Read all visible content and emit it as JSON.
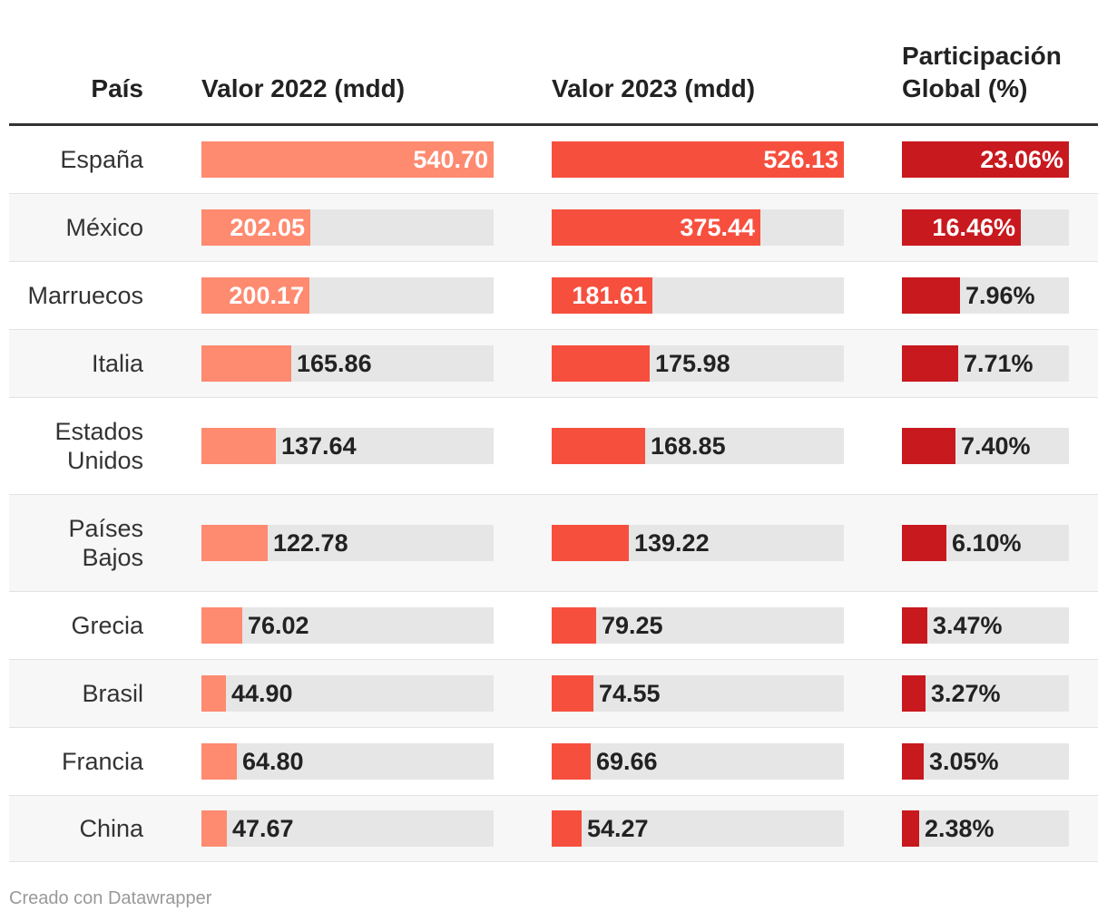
{
  "headers": {
    "pais": "País",
    "valor_2022": "Valor 2022 (mdd)",
    "valor_2023": "Valor 2023 (mdd)",
    "participacion_line1": "Participación",
    "participacion_line2": "Global (%)"
  },
  "colors": {
    "bar_2022": "#fe8a70",
    "bar_2023": "#f74f3e",
    "bar_share": "#c8191f",
    "track": "#e6e6e6"
  },
  "chart_data": {
    "type": "table",
    "title": "",
    "columns": [
      "País",
      "Valor 2022 (mdd)",
      "Valor 2023 (mdd)",
      "Participación Global (%)"
    ],
    "scale_max": {
      "valor_2022": 540.7,
      "valor_2023": 526.13,
      "participacion": 23.06
    },
    "rows": [
      {
        "pais": [
          "España"
        ],
        "v2022": 540.7,
        "v2022_label": "540.70",
        "v2023": 526.13,
        "v2023_label": "526.13",
        "share": 23.06,
        "share_label": "23.06%"
      },
      {
        "pais": [
          "México"
        ],
        "v2022": 202.05,
        "v2022_label": "202.05",
        "v2023": 375.44,
        "v2023_label": "375.44",
        "share": 16.46,
        "share_label": "16.46%"
      },
      {
        "pais": [
          "Marruecos"
        ],
        "v2022": 200.17,
        "v2022_label": "200.17",
        "v2023": 181.61,
        "v2023_label": "181.61",
        "share": 7.96,
        "share_label": "7.96%"
      },
      {
        "pais": [
          "Italia"
        ],
        "v2022": 165.86,
        "v2022_label": "165.86",
        "v2023": 175.98,
        "v2023_label": "175.98",
        "share": 7.71,
        "share_label": "7.71%"
      },
      {
        "pais": [
          "Estados",
          "Unidos"
        ],
        "v2022": 137.64,
        "v2022_label": "137.64",
        "v2023": 168.85,
        "v2023_label": "168.85",
        "share": 7.4,
        "share_label": "7.40%"
      },
      {
        "pais": [
          "Países",
          "Bajos"
        ],
        "v2022": 122.78,
        "v2022_label": "122.78",
        "v2023": 139.22,
        "v2023_label": "139.22",
        "share": 6.1,
        "share_label": "6.10%"
      },
      {
        "pais": [
          "Grecia"
        ],
        "v2022": 76.02,
        "v2022_label": "76.02",
        "v2023": 79.25,
        "v2023_label": "79.25",
        "share": 3.47,
        "share_label": "3.47%"
      },
      {
        "pais": [
          "Brasil"
        ],
        "v2022": 44.9,
        "v2022_label": "44.90",
        "v2023": 74.55,
        "v2023_label": "74.55",
        "share": 3.27,
        "share_label": "3.27%"
      },
      {
        "pais": [
          "Francia"
        ],
        "v2022": 64.8,
        "v2022_label": "64.80",
        "v2023": 69.66,
        "v2023_label": "69.66",
        "share": 3.05,
        "share_label": "3.05%"
      },
      {
        "pais": [
          "China"
        ],
        "v2022": 47.67,
        "v2022_label": "47.67",
        "v2023": 54.27,
        "v2023_label": "54.27",
        "share": 2.38,
        "share_label": "2.38%"
      }
    ]
  },
  "footer": {
    "credit": "Creado con Datawrapper"
  }
}
